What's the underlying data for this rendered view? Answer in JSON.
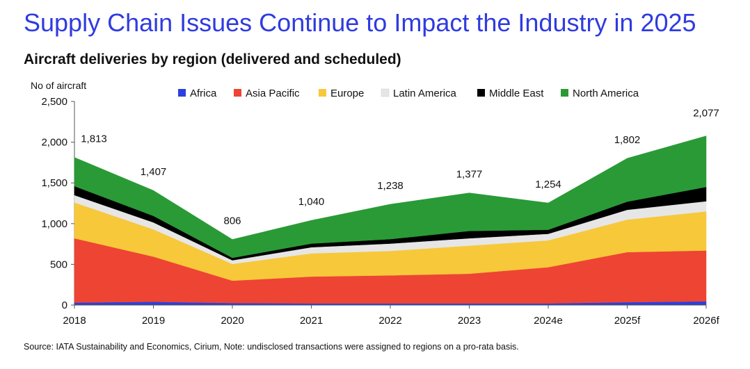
{
  "header": {
    "title": "Supply Chain Issues Continue to Impact the Industry in 2025",
    "subtitle": "Aircraft deliveries by region (delivered and scheduled)"
  },
  "footer": {
    "source": "Source: IATA Sustainability and Economics, Cirium, Note: undisclosed transactions were assigned to regions on a pro-rata basis."
  },
  "chart_data": {
    "type": "area",
    "stacked": true,
    "ylabel": "No of aircraft",
    "ylim": [
      0,
      2500
    ],
    "yticks": [
      0,
      500,
      1000,
      1500,
      2000,
      2500
    ],
    "ytick_labels": [
      "0",
      "500",
      "1,000",
      "1,500",
      "2,000",
      "2,500"
    ],
    "categories": [
      "2018",
      "2019",
      "2020",
      "2021",
      "2022",
      "2023",
      "2024e",
      "2025f",
      "2026f"
    ],
    "legend_position": "top",
    "series": [
      {
        "name": "Africa",
        "color": "#2b3fe0",
        "values": [
          30,
          40,
          25,
          20,
          20,
          20,
          20,
          35,
          45
        ]
      },
      {
        "name": "Asia Pacific",
        "color": "#ee4433",
        "values": [
          790,
          555,
          275,
          330,
          345,
          365,
          445,
          615,
          625
        ]
      },
      {
        "name": "Europe",
        "color": "#f7c83a",
        "values": [
          440,
          335,
          205,
          285,
          300,
          345,
          330,
          400,
          480
        ]
      },
      {
        "name": "Latin America",
        "color": "#e6e6e6",
        "values": [
          90,
          85,
          45,
          75,
          90,
          90,
          80,
          120,
          125
        ]
      },
      {
        "name": "Middle East",
        "color": "#000000",
        "values": [
          110,
          80,
          30,
          45,
          55,
          90,
          50,
          100,
          175
        ]
      },
      {
        "name": "North America",
        "color": "#2a9a36",
        "values": [
          353,
          312,
          226,
          285,
          428,
          467,
          329,
          532,
          627
        ]
      }
    ],
    "total_labels": [
      "1,813",
      "1,407",
      "806",
      "1,040",
      "1,238",
      "1,377",
      "1,254",
      "1,802",
      "2,077"
    ],
    "gridlines": false
  }
}
